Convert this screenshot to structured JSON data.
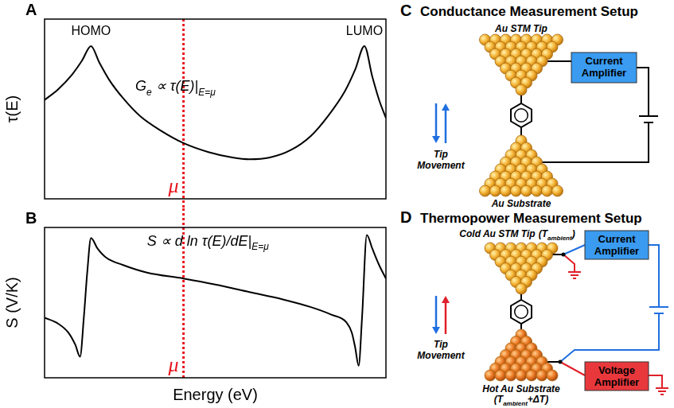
{
  "chart_data": [
    {
      "type": "line",
      "panel": "A",
      "y_label": "τ(E)",
      "x": [
        0,
        0.4,
        0.8,
        1.1,
        1.36,
        1.6,
        1.9,
        2.3,
        2.8,
        3.4,
        4.07,
        4.8,
        5.5,
        6.0,
        6.6,
        7.2,
        7.8,
        8.3,
        8.8,
        9.1,
        9.37,
        9.6,
        9.8,
        10
      ],
      "values": [
        5.5,
        6.1,
        6.9,
        7.7,
        8.5,
        7.6,
        6.6,
        5.6,
        4.6,
        3.8,
        3.1,
        2.6,
        2.3,
        2.2,
        2.3,
        2.7,
        3.5,
        4.6,
        6.0,
        7.2,
        8.5,
        6.8,
        5.5,
        4.5
      ],
      "color": "#000000",
      "xlim": [
        0,
        10
      ],
      "ylim": [
        0,
        10
      ],
      "tick_labels": false,
      "grid": false,
      "annotations": [
        {
          "text": "HOMO",
          "x": 1.36,
          "y": 9.1
        },
        {
          "text": "LUMO",
          "x": 9.37,
          "y": 9.1
        },
        {
          "parts": [
            {
              "text": "G"
            },
            {
              "text": "e",
              "script": "sub"
            },
            {
              "text": " ∝ τ(E)|"
            },
            {
              "text": "E=μ",
              "script": "sub"
            }
          ],
          "x": 2.66,
          "y": 6.0
        }
      ],
      "vline": {
        "x": 4.07,
        "label": "μ",
        "color": "#e8141c",
        "line_style": "dotted"
      }
    },
    {
      "type": "line",
      "panel": "B",
      "y_label": "S (V/K)",
      "x_label": "Energy (eV)",
      "x": [
        0,
        0.4,
        0.7,
        0.9,
        1.04,
        1.15,
        1.25,
        1.36,
        1.55,
        1.8,
        2.3,
        3.0,
        4.07,
        5.0,
        6.0,
        7.0,
        7.8,
        8.4,
        8.84,
        9.0,
        9.1,
        9.2,
        9.3,
        9.44,
        9.6,
        9.8,
        10
      ],
      "values": [
        4.0,
        3.6,
        3.0,
        2.2,
        1.4,
        4.0,
        7.0,
        9.3,
        8.6,
        8.0,
        7.5,
        7.0,
        6.6,
        6.2,
        5.7,
        5.2,
        4.7,
        4.2,
        3.7,
        3.0,
        2.0,
        0.8,
        4.0,
        9.5,
        8.6,
        7.5,
        6.6
      ],
      "color": "#000000",
      "xlim": [
        0,
        10
      ],
      "ylim": [
        0,
        10
      ],
      "tick_labels": false,
      "grid": false,
      "annotations": [
        {
          "parts": [
            {
              "text": "S ∝ d ln τ(E)/dE|"
            },
            {
              "text": "E=μ",
              "script": "sub"
            }
          ],
          "x": 3.0,
          "y": 8.8
        }
      ],
      "vline": {
        "x": 4.07,
        "label": "μ",
        "color": "#e8141c",
        "line_style": "dotted"
      }
    }
  ],
  "diagrams": {
    "C": {
      "letter": "C",
      "title": "Conductance Measurement Setup",
      "tip": "Au STM Tip",
      "substrate": "Au Substrate",
      "motion": "Tip Movement",
      "amplifier": "Current Amplifier"
    },
    "D": {
      "letter": "D",
      "title": "Thermopower Measurement Setup",
      "tip": "Cold Au STM Tip",
      "tip_temperature": [
        {
          "text": "(T"
        },
        {
          "text": "ambient",
          "script": "sub"
        },
        {
          "text": ")"
        }
      ],
      "substrate": "Hot Au Substrate",
      "substrate_temperature": [
        {
          "text": "(T"
        },
        {
          "text": "ambient",
          "script": "sub"
        },
        {
          "text": "+ΔT)"
        }
      ],
      "motion": "Tip Movement",
      "current_amplifier": "Current Amplifier",
      "voltage_amplifier": "Voltage Amplifier"
    }
  }
}
